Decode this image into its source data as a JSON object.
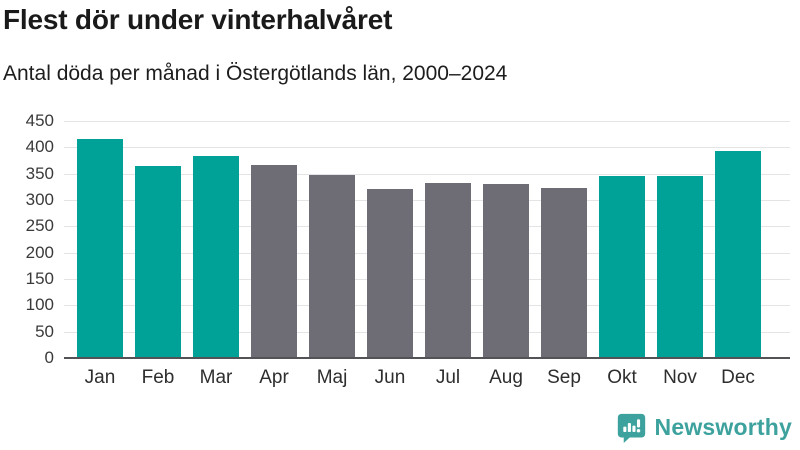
{
  "header": {
    "title": "Flest dör under vinterhalvåret",
    "subtitle": "Antal döda per månad i Östergötlands län, 2000–2024"
  },
  "chart_data": {
    "type": "bar",
    "title": "Flest dör under vinterhalvåret",
    "subtitle": "Antal döda per månad i Östergötlands län, 2000–2024",
    "categories": [
      "Jan",
      "Feb",
      "Mar",
      "Apr",
      "Maj",
      "Jun",
      "Jul",
      "Aug",
      "Sep",
      "Okt",
      "Nov",
      "Dec"
    ],
    "values": [
      415,
      365,
      384,
      367,
      348,
      320,
      333,
      330,
      322,
      346,
      346,
      394
    ],
    "bar_colors": [
      "#00a298",
      "#00a298",
      "#00a298",
      "#6e6d76",
      "#6e6d76",
      "#6e6d76",
      "#6e6d76",
      "#6e6d76",
      "#6e6d76",
      "#00a298",
      "#00a298",
      "#00a298"
    ],
    "xlabel": "",
    "ylabel": "",
    "ylim": [
      0,
      450
    ],
    "yticks": [
      0,
      50,
      100,
      150,
      200,
      250,
      300,
      350,
      400,
      450
    ],
    "grid": true,
    "legend_position": "none"
  },
  "footer": {
    "brand": "Newsworthy"
  },
  "colors": {
    "winter_bar": "#00a298",
    "summer_bar": "#6e6d76",
    "gridline": "#e4e4e7",
    "axis_line": "#535257",
    "brand": "#3da29d",
    "title_text": "#1a1a1a"
  }
}
